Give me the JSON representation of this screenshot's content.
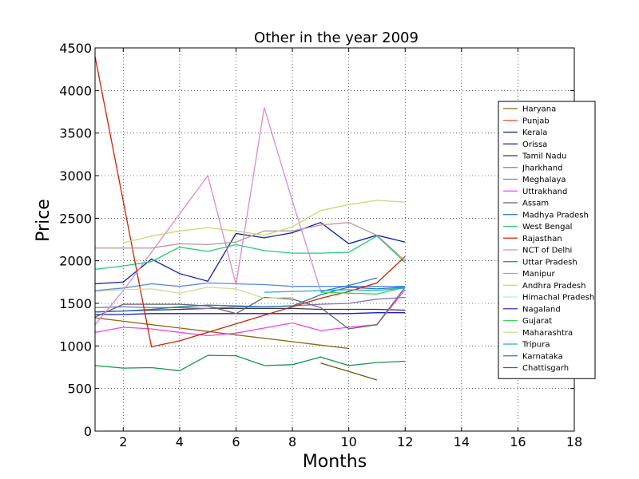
{
  "chart_data": {
    "type": "line",
    "title": "Other in the year 2009",
    "xlabel": "Months",
    "ylabel": "Price",
    "xlim": [
      1,
      18
    ],
    "ylim": [
      0,
      4500
    ],
    "xticks": [
      2,
      4,
      6,
      8,
      10,
      12,
      14,
      16,
      18
    ],
    "yticks": [
      0,
      500,
      1000,
      1500,
      2000,
      2500,
      3000,
      3500,
      4000,
      4500
    ],
    "grid": true,
    "legend_position": "right",
    "series": [
      {
        "name": "Haryana",
        "color": "#8b6914",
        "x": [
          1,
          2,
          3,
          4,
          5,
          6,
          7,
          8,
          9,
          10
        ],
        "y": [
          1330,
          1290,
          1250,
          1210,
          1170,
          1130,
          1090,
          1050,
          1010,
          970
        ]
      },
      {
        "name": "Punjab",
        "color": "#e8532a",
        "x": [],
        "y": []
      },
      {
        "name": "Kerala",
        "color": "#0a1fa8",
        "x": [
          1,
          2,
          3,
          4,
          5,
          6,
          7,
          8,
          9,
          10,
          11,
          12
        ],
        "y": [
          1730,
          1750,
          2020,
          1850,
          1760,
          2320,
          2270,
          2330,
          2450,
          2200,
          2300,
          2220
        ]
      },
      {
        "name": "Orissa",
        "color": "#1a1acc",
        "x": [
          1,
          2,
          3,
          4,
          5,
          6,
          7,
          8,
          9,
          10,
          11,
          12
        ],
        "y": [
          1370,
          1370,
          1380,
          1380,
          1380,
          1380,
          1380,
          1380,
          1380,
          1380,
          1390,
          1390
        ]
      },
      {
        "name": "Tamil Nadu",
        "color": "#3a3a3a",
        "x": [
          1,
          2,
          3,
          4,
          5,
          6,
          7,
          8,
          9,
          10,
          11,
          12
        ],
        "y": [
          1400,
          1410,
          1420,
          1430,
          1440,
          1440,
          1440,
          1440,
          1430,
          1430,
          1430,
          1420
        ]
      },
      {
        "name": "Jharkhand",
        "color": "#8870c8",
        "x": [
          1,
          2,
          3,
          4,
          5,
          6,
          7,
          8,
          9,
          10,
          11,
          12
        ],
        "y": [
          1450,
          1460,
          1450,
          1450,
          1440,
          1460,
          1460,
          1470,
          1490,
          1500,
          1550,
          1570
        ]
      },
      {
        "name": "Meghalaya",
        "color": "#5588ee",
        "x": [
          1,
          2,
          3,
          4,
          5,
          6,
          7,
          8,
          9,
          10,
          11,
          12
        ],
        "y": [
          1650,
          1680,
          1730,
          1700,
          1740,
          1730,
          1720,
          1700,
          1700,
          1700,
          1700,
          1700
        ]
      },
      {
        "name": "Uttrakhand",
        "color": "#ee44ee",
        "x": [
          1,
          2,
          3,
          4,
          5,
          6,
          7,
          8,
          9,
          10,
          11,
          12
        ],
        "y": [
          1160,
          1220,
          1200,
          1160,
          1120,
          1150,
          1210,
          1270,
          1180,
          1220,
          1250,
          1660
        ]
      },
      {
        "name": "Assam",
        "color": "#666666",
        "x": [
          1,
          2,
          3,
          4,
          5,
          6,
          7,
          8,
          9,
          10,
          11,
          12
        ],
        "y": [
          1340,
          1490,
          1490,
          1490,
          1470,
          1380,
          1570,
          1550,
          1450,
          1200,
          1250,
          1690
        ]
      },
      {
        "name": "Madhya Pradesh",
        "color": "#2277aa",
        "x": [
          1,
          2,
          3,
          4,
          5,
          6,
          7,
          8,
          9,
          10,
          11,
          12
        ],
        "y": [
          1400,
          1410,
          1430,
          1460,
          1480,
          1470,
          1460,
          1470,
          1600,
          1690,
          1670,
          1690
        ]
      },
      {
        "name": "West Bengal",
        "color": "#22cc77",
        "x": [
          1,
          2,
          3,
          4,
          5,
          6,
          7,
          8,
          9,
          10,
          11,
          12
        ],
        "y": [
          1900,
          1940,
          1990,
          2160,
          2110,
          2190,
          2120,
          2090,
          2090,
          2100,
          2290,
          1980
        ]
      },
      {
        "name": "Rajasthan",
        "color": "#cc2200",
        "x": [
          1,
          2,
          3,
          4,
          5,
          6,
          7,
          8,
          9,
          10,
          11,
          12
        ],
        "y": [
          4400,
          2700,
          990,
          1060,
          1160,
          1260,
          1360,
          1460,
          1560,
          1640,
          1740,
          2050
        ]
      },
      {
        "name": "NCT of Delhi",
        "color": "#dd88cc",
        "x": [
          1,
          2,
          3,
          4,
          5,
          6,
          7,
          8,
          9
        ],
        "y": [
          1250,
          1650,
          2100,
          2550,
          3000,
          1720,
          3800,
          2700,
          1650
        ]
      },
      {
        "name": "Uttar Pradesh",
        "color": "#119944",
        "x": [
          1,
          2,
          3,
          4,
          5,
          6,
          7,
          8,
          9,
          10,
          11,
          12
        ],
        "y": [
          770,
          740,
          745,
          710,
          890,
          885,
          770,
          780,
          870,
          770,
          805,
          820
        ]
      },
      {
        "name": "Manipur",
        "color": "#bb9999",
        "x": [
          1,
          2,
          3,
          4,
          5,
          6,
          7,
          8,
          9,
          10,
          11,
          12
        ],
        "y": [
          2150,
          2150,
          2150,
          2200,
          2190,
          2220,
          2350,
          2350,
          2420,
          2450,
          2300,
          2000
        ]
      },
      {
        "name": "Andhra Pradesh",
        "color": "#c8d870",
        "x": [
          2,
          3,
          4,
          5,
          6,
          7,
          8,
          9,
          10,
          11,
          12
        ],
        "y": [
          2210,
          2290,
          2350,
          2390,
          2350,
          2300,
          2400,
          2590,
          2660,
          2710,
          2690
        ]
      },
      {
        "name": "Himachal Pradesh",
        "color": "#aaeeee",
        "x": [],
        "y": []
      },
      {
        "name": "Nagaland",
        "color": "#5522aa",
        "x": [],
        "y": []
      },
      {
        "name": "Gujarat",
        "color": "#33dd55",
        "x": [
          9,
          10,
          11,
          12
        ],
        "y": [
          1630,
          1620,
          1610,
          1690
        ]
      },
      {
        "name": "Maharashtra",
        "color": "#ccdd99",
        "x": [
          1,
          2,
          3,
          4,
          5,
          6,
          7,
          8
        ],
        "y": [
          1640,
          1660,
          1670,
          1620,
          1690,
          1670,
          1560,
          1570
        ]
      },
      {
        "name": "Tripura",
        "color": "#22aadd",
        "x": [
          7,
          8,
          9,
          10,
          11,
          12
        ],
        "y": [
          1630,
          1640,
          1650,
          1660,
          1650,
          1680
        ]
      },
      {
        "name": "Karnataka",
        "color": "#3377cc",
        "x": [
          9,
          10,
          11
        ],
        "y": [
          1640,
          1710,
          1800
        ]
      },
      {
        "name": "Chattisgarh",
        "color": "#6b5a10",
        "x": [
          9,
          10,
          11
        ],
        "y": [
          800,
          700,
          600
        ]
      }
    ]
  }
}
